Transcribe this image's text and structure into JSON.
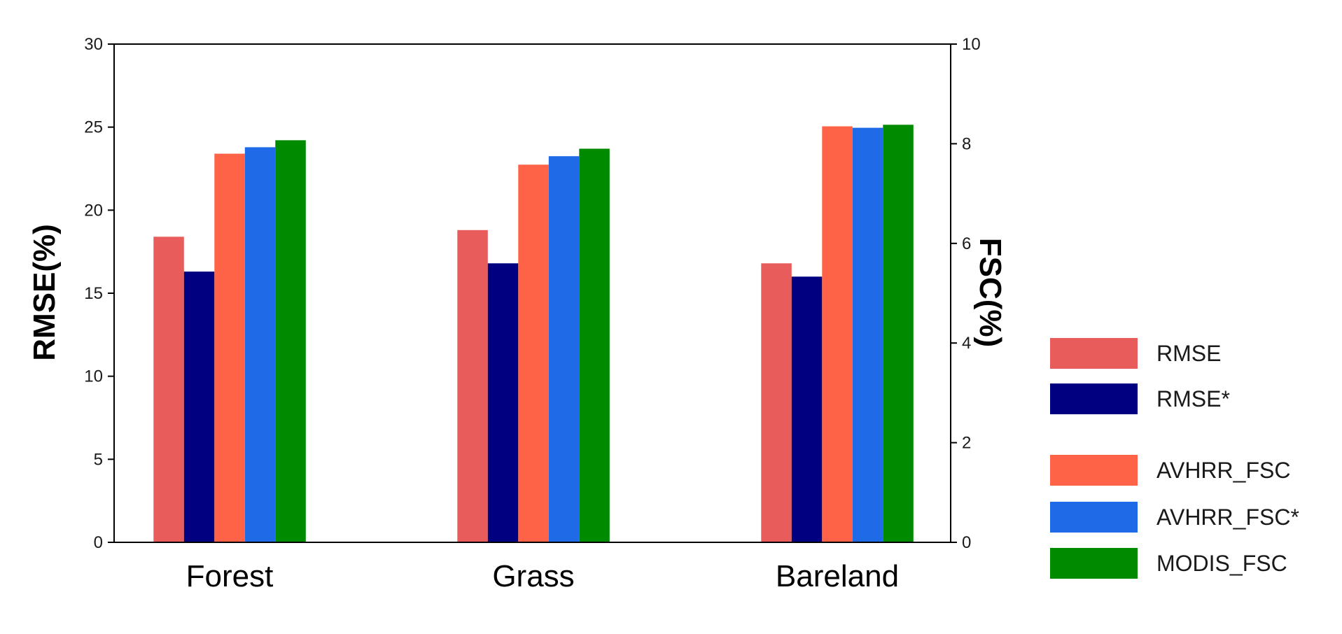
{
  "chart_data": {
    "type": "bar",
    "categories": [
      "Forest",
      "Grass",
      "Bareland"
    ],
    "ylabel": "RMSE(%)",
    "y2label": "FSC(%)",
    "ylim": [
      0,
      30
    ],
    "y2lim": [
      0,
      10
    ],
    "yticks": [
      "0",
      "5",
      "10",
      "15",
      "20",
      "25",
      "30"
    ],
    "y2ticks": [
      "0",
      "2",
      "4",
      "6",
      "8",
      "10"
    ],
    "grid": false,
    "legend_position": "right",
    "series": [
      {
        "name": "RMSE",
        "axis": "left",
        "color": "#e85c5c",
        "values": [
          18.4,
          18.8,
          16.8
        ]
      },
      {
        "name": "RMSE*",
        "axis": "left",
        "color": "#000080",
        "values": [
          16.3,
          16.8,
          16.0
        ]
      },
      {
        "name": "AVHRR_FSC",
        "axis": "right",
        "color": "#ff6347",
        "values": [
          7.8,
          7.58,
          8.35
        ]
      },
      {
        "name": "AVHRR_FSC*",
        "axis": "right",
        "color": "#1f6ae6",
        "values": [
          7.93,
          7.75,
          8.32
        ]
      },
      {
        "name": "MODIS_FSC",
        "axis": "right",
        "color": "#008a00",
        "values": [
          8.07,
          7.9,
          8.38
        ]
      }
    ]
  }
}
